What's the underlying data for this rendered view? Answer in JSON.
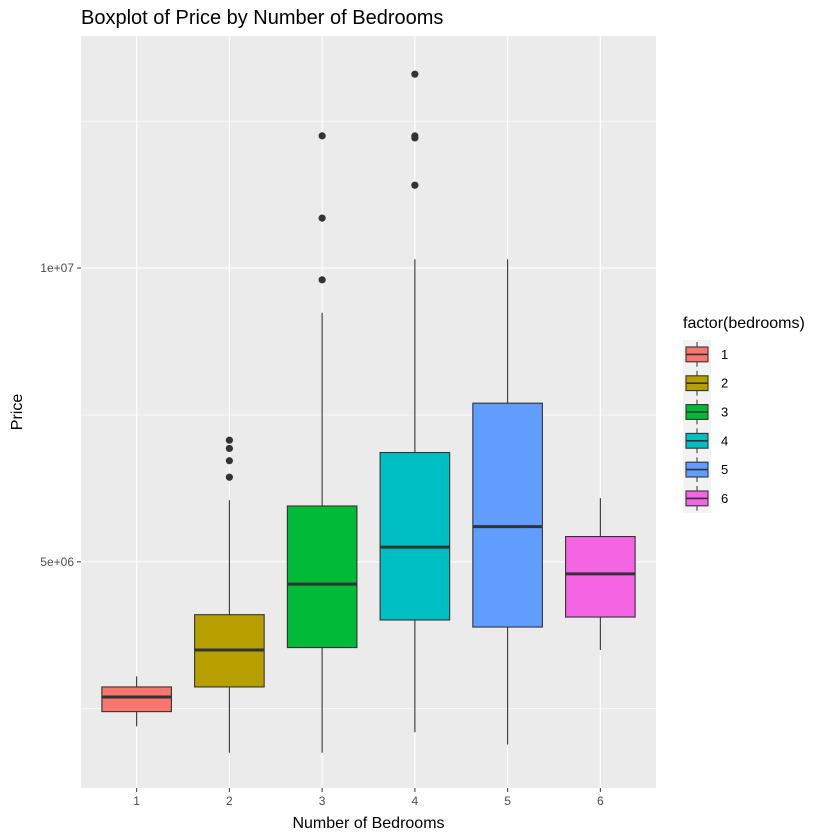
{
  "chart_data": {
    "type": "boxplot",
    "title": "Boxplot of Price by Number of Bedrooms",
    "xlabel": "Number of Bedrooms",
    "ylabel": "Price",
    "categories": [
      "1",
      "2",
      "3",
      "4",
      "5",
      "6"
    ],
    "ylim": [
      1150000,
      13950000
    ],
    "y_ticks": [
      {
        "value": 5000000,
        "label": "5e+06"
      },
      {
        "value": 10000000,
        "label": "1e+07"
      }
    ],
    "y_minor_ticks": [
      2500000,
      7500000,
      12500000
    ],
    "grid": true,
    "legend": {
      "title": "factor(bedrooms)",
      "position": "right",
      "entries": [
        "1",
        "2",
        "3",
        "4",
        "5",
        "6"
      ]
    },
    "colors": [
      "#F8766D",
      "#B79F00",
      "#00BA38",
      "#00BFC4",
      "#619CFF",
      "#F564E3"
    ],
    "panel_background": "#EBEBEB",
    "series": [
      {
        "category": "1",
        "lower_whisker": 2200000,
        "q1": 2450000,
        "median": 2700000,
        "q3": 2870000,
        "upper_whisker": 3050000,
        "outliers": []
      },
      {
        "category": "2",
        "lower_whisker": 1750000,
        "q1": 2870000,
        "median": 3500000,
        "q3": 4100000,
        "upper_whisker": 6050000,
        "outliers": [
          6440000,
          6720000,
          6930000,
          7070000
        ]
      },
      {
        "category": "3",
        "lower_whisker": 1750000,
        "q1": 3540000,
        "median": 4620000,
        "q3": 5950000,
        "upper_whisker": 9240000,
        "outliers": [
          9800000,
          10850000,
          12250000
        ]
      },
      {
        "category": "4",
        "lower_whisker": 2100000,
        "q1": 4010000,
        "median": 5250000,
        "q3": 6860000,
        "upper_whisker": 10150000,
        "outliers": [
          11410000,
          12215000,
          12250000,
          13300000
        ]
      },
      {
        "category": "5",
        "lower_whisker": 1890000,
        "q1": 3890000,
        "median": 5600000,
        "q3": 7700000,
        "upper_whisker": 10150000,
        "outliers": []
      },
      {
        "category": "6",
        "lower_whisker": 3500000,
        "q1": 4060000,
        "median": 4795000,
        "q3": 5430000,
        "upper_whisker": 6083000,
        "outliers": []
      }
    ]
  }
}
